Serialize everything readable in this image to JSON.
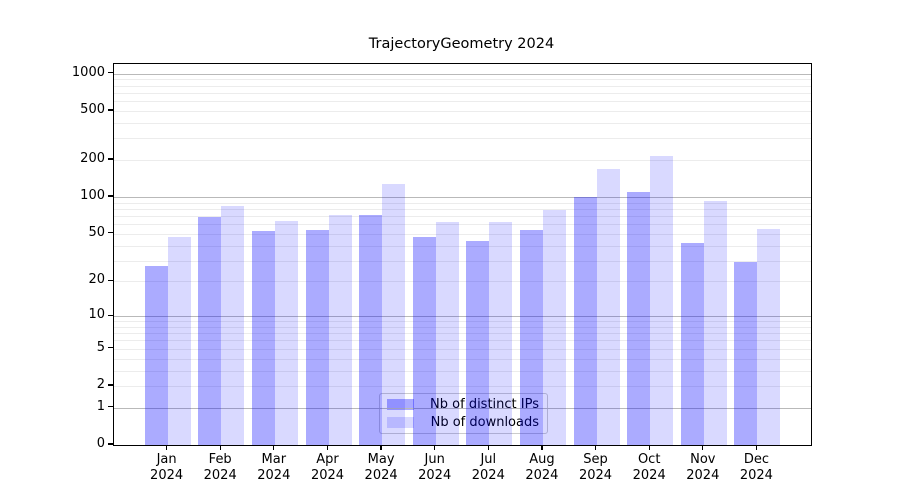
{
  "title": "TrajectoryGeometry 2024",
  "chart_data": {
    "type": "bar",
    "title": "TrajectoryGeometry 2024",
    "categories": [
      "Jan 2024",
      "Feb 2024",
      "Mar 2024",
      "Apr 2024",
      "May 2024",
      "Jun 2024",
      "Jul 2024",
      "Aug 2024",
      "Sep 2024",
      "Oct 2024",
      "Nov 2024",
      "Dec 2024"
    ],
    "series": [
      {
        "name": "Nb of distinct IPs",
        "fill": "rgba(0,0,255,0.33)",
        "hex": "#aaaaff",
        "values": [
          27,
          69,
          53,
          54,
          72,
          47,
          44,
          54,
          100,
          111,
          42,
          29
        ]
      },
      {
        "name": "Nb of downloads",
        "fill": "rgba(0,0,255,0.15)",
        "hex": "#d9d9ff",
        "values": [
          47,
          84,
          64,
          72,
          129,
          63,
          62,
          78,
          170,
          215,
          93,
          55
        ]
      }
    ],
    "yscale": "log1p",
    "yticks": [
      0,
      1,
      2,
      5,
      10,
      20,
      50,
      100,
      200,
      500,
      1000
    ],
    "ylim": [
      0,
      1200
    ],
    "xlabel": "",
    "ylabel": "",
    "grid": "horizontal, major decades + minor 2-9 per decade, drawn through translucent bars",
    "legend_position": "inside lower-center-left"
  }
}
